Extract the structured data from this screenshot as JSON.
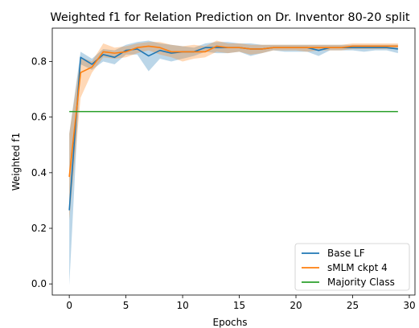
{
  "chart_data": {
    "type": "line",
    "title": "Weighted f1 for Relation Prediction on Dr. Inventor 80-20 split",
    "xlabel": "Epochs",
    "ylabel": "Weighted f1",
    "xlim": [
      -1.5,
      30.5
    ],
    "ylim": [
      -0.04,
      0.92
    ],
    "xticks": [
      0,
      5,
      10,
      15,
      20,
      25,
      30
    ],
    "yticks": [
      0.0,
      0.2,
      0.4,
      0.6,
      0.8
    ],
    "ytick_labels": [
      "0.0",
      "0.2",
      "0.4",
      "0.6",
      "0.8"
    ],
    "grid": false,
    "legend_position": "lower-right",
    "x": [
      0,
      1,
      2,
      3,
      4,
      5,
      6,
      7,
      8,
      9,
      10,
      11,
      12,
      13,
      14,
      15,
      16,
      17,
      18,
      19,
      20,
      21,
      22,
      23,
      24,
      25,
      26,
      27,
      28,
      29
    ],
    "series": [
      {
        "name": "Base LF",
        "color": "#1f77b4",
        "values": [
          0.265,
          0.815,
          0.79,
          0.825,
          0.815,
          0.84,
          0.845,
          0.82,
          0.84,
          0.83,
          0.835,
          0.835,
          0.85,
          0.85,
          0.85,
          0.85,
          0.845,
          0.845,
          0.85,
          0.85,
          0.85,
          0.85,
          0.84,
          0.85,
          0.85,
          0.85,
          0.85,
          0.85,
          0.85,
          0.845
        ],
        "lower": [
          -0.005,
          0.79,
          0.77,
          0.8,
          0.79,
          0.825,
          0.825,
          0.765,
          0.81,
          0.8,
          0.81,
          0.82,
          0.835,
          0.83,
          0.83,
          0.835,
          0.82,
          0.83,
          0.84,
          0.835,
          0.835,
          0.835,
          0.82,
          0.84,
          0.84,
          0.84,
          0.835,
          0.84,
          0.84,
          0.83
        ],
        "upper": [
          0.54,
          0.835,
          0.81,
          0.845,
          0.84,
          0.86,
          0.87,
          0.875,
          0.865,
          0.86,
          0.855,
          0.85,
          0.865,
          0.87,
          0.87,
          0.865,
          0.865,
          0.86,
          0.86,
          0.86,
          0.86,
          0.86,
          0.86,
          0.86,
          0.86,
          0.86,
          0.86,
          0.86,
          0.86,
          0.86
        ]
      },
      {
        "name": "sMLM ckpt 4",
        "color": "#ff7f0e",
        "values": [
          0.385,
          0.76,
          0.78,
          0.835,
          0.83,
          0.835,
          0.85,
          0.855,
          0.85,
          0.835,
          0.835,
          0.835,
          0.835,
          0.855,
          0.85,
          0.85,
          0.845,
          0.845,
          0.85,
          0.85,
          0.85,
          0.85,
          0.85,
          0.85,
          0.85,
          0.855,
          0.855,
          0.855,
          0.855,
          0.855
        ],
        "lower": [
          0.23,
          0.67,
          0.76,
          0.815,
          0.81,
          0.815,
          0.83,
          0.84,
          0.825,
          0.815,
          0.8,
          0.81,
          0.815,
          0.835,
          0.83,
          0.835,
          0.825,
          0.83,
          0.84,
          0.84,
          0.84,
          0.835,
          0.84,
          0.84,
          0.84,
          0.845,
          0.845,
          0.845,
          0.845,
          0.845
        ],
        "upper": [
          0.54,
          0.815,
          0.8,
          0.865,
          0.85,
          0.855,
          0.865,
          0.87,
          0.87,
          0.86,
          0.855,
          0.86,
          0.855,
          0.875,
          0.865,
          0.865,
          0.86,
          0.86,
          0.86,
          0.86,
          0.86,
          0.86,
          0.86,
          0.86,
          0.86,
          0.865,
          0.865,
          0.865,
          0.865,
          0.865
        ]
      },
      {
        "name": "Majority Class",
        "color": "#2ca02c",
        "values": [
          0.62,
          0.62,
          0.62,
          0.62,
          0.62,
          0.62,
          0.62,
          0.62,
          0.62,
          0.62,
          0.62,
          0.62,
          0.62,
          0.62,
          0.62,
          0.62,
          0.62,
          0.62,
          0.62,
          0.62,
          0.62,
          0.62,
          0.62,
          0.62,
          0.62,
          0.62,
          0.62,
          0.62,
          0.62,
          0.62
        ]
      }
    ]
  }
}
